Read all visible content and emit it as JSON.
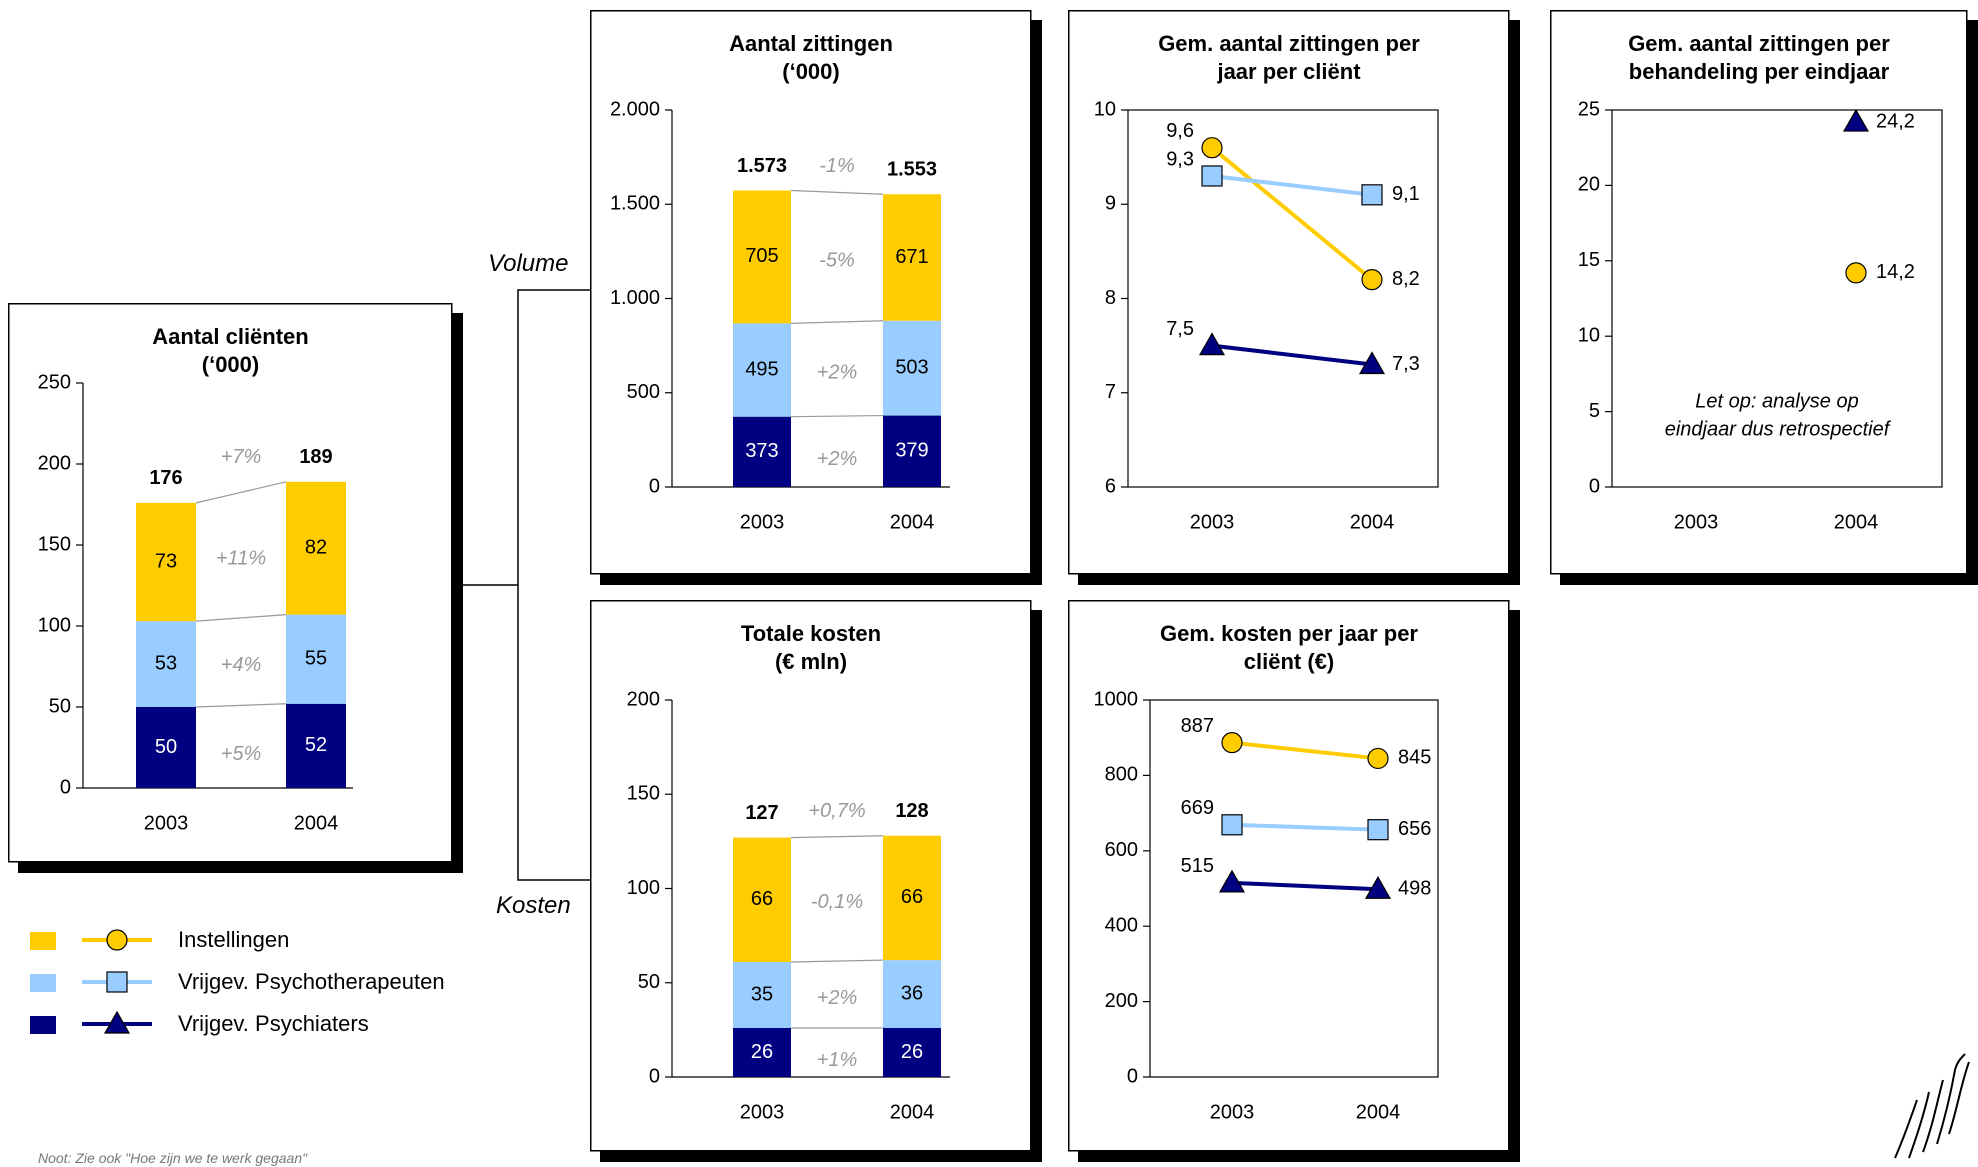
{
  "colors": {
    "instellingen": "#FFCC00",
    "psychotherapeuten": "#99CCFF",
    "psychiaters": "#000080",
    "change_label": "#999999"
  },
  "legend": {
    "items": [
      {
        "label": "Instellingen",
        "color_key": "instellingen",
        "marker": "circle"
      },
      {
        "label": "Vrijgev. Psychotherapeuten",
        "color_key": "psychotherapeuten",
        "marker": "square"
      },
      {
        "label": "Vrijgev. Psychiaters",
        "color_key": "psychiaters",
        "marker": "triangle"
      }
    ]
  },
  "labels": {
    "volume": "Volume",
    "kosten": "Kosten",
    "note": "Noot: Zie ook \"Hoe zijn we te werk gegaan\""
  },
  "chart_data": [
    {
      "id": "clienten",
      "type": "bar",
      "title_lines": [
        "Aantal cliënten",
        "(‘000)"
      ],
      "categories": [
        "2003",
        "2004"
      ],
      "ylim": [
        0,
        250
      ],
      "yticks": [
        0,
        50,
        100,
        150,
        200,
        250
      ],
      "ytick_labels": [
        "0",
        "50",
        "100",
        "150",
        "200",
        "250"
      ],
      "series": [
        {
          "name": "Vrijgev. Psychiaters",
          "color_key": "psychiaters",
          "values": [
            50,
            52
          ],
          "labels": [
            "50",
            "52"
          ]
        },
        {
          "name": "Vrijgev. Psychotherapeuten",
          "color_key": "psychotherapeuten",
          "values": [
            53,
            55
          ],
          "labels": [
            "53",
            "55"
          ]
        },
        {
          "name": "Instellingen",
          "color_key": "instellingen",
          "values": [
            73,
            82
          ],
          "labels": [
            "73",
            "82"
          ]
        }
      ],
      "totals": [
        "176",
        "189"
      ],
      "changes": [
        "+5%",
        "+4%",
        "+11%"
      ],
      "total_change": "+7%"
    },
    {
      "id": "zittingen",
      "type": "bar",
      "title_lines": [
        "Aantal zittingen",
        "(‘000)"
      ],
      "categories": [
        "2003",
        "2004"
      ],
      "ylim": [
        0,
        2000
      ],
      "yticks": [
        0,
        500,
        1000,
        1500,
        2000
      ],
      "ytick_labels": [
        "0",
        "500",
        "1.000",
        "1.500",
        "2.000"
      ],
      "series": [
        {
          "name": "Vrijgev. Psychiaters",
          "color_key": "psychiaters",
          "values": [
            373,
            379
          ],
          "labels": [
            "373",
            "379"
          ]
        },
        {
          "name": "Vrijgev. Psychotherapeuten",
          "color_key": "psychotherapeuten",
          "values": [
            495,
            503
          ],
          "labels": [
            "495",
            "503"
          ]
        },
        {
          "name": "Instellingen",
          "color_key": "instellingen",
          "values": [
            705,
            671
          ],
          "labels": [
            "705",
            "671"
          ]
        }
      ],
      "totals": [
        "1.573",
        "1.553"
      ],
      "changes": [
        "+2%",
        "+2%",
        "-5%"
      ],
      "total_change": "-1%"
    },
    {
      "id": "kosten",
      "type": "bar",
      "title_lines": [
        "Totale kosten",
        "(€ mln)"
      ],
      "categories": [
        "2003",
        "2004"
      ],
      "ylim": [
        0,
        200
      ],
      "yticks": [
        0,
        50,
        100,
        150,
        200
      ],
      "ytick_labels": [
        "0",
        "50",
        "100",
        "150",
        "200"
      ],
      "series": [
        {
          "name": "Vrijgev. Psychiaters",
          "color_key": "psychiaters",
          "values": [
            26,
            26
          ],
          "labels": [
            "26",
            "26"
          ]
        },
        {
          "name": "Vrijgev. Psychotherapeuten",
          "color_key": "psychotherapeuten",
          "values": [
            35,
            36
          ],
          "labels": [
            "35",
            "36"
          ]
        },
        {
          "name": "Instellingen",
          "color_key": "instellingen",
          "values": [
            66,
            66
          ],
          "labels": [
            "66",
            "66"
          ]
        }
      ],
      "totals": [
        "127",
        "128"
      ],
      "changes": [
        "+1%",
        "+2%",
        "-0,1%"
      ],
      "total_change": "+0,7%"
    },
    {
      "id": "zittingen_per_client",
      "type": "line",
      "title_lines": [
        "Gem. aantal zittingen per",
        "jaar per cliënt"
      ],
      "categories": [
        "2003",
        "2004"
      ],
      "ylim": [
        6,
        10
      ],
      "yticks": [
        6,
        7,
        8,
        9,
        10
      ],
      "ytick_labels": [
        "6",
        "7",
        "8",
        "9",
        "10"
      ],
      "series": [
        {
          "name": "Instellingen",
          "color_key": "instellingen",
          "marker": "circle",
          "values": [
            9.6,
            8.2
          ],
          "labels": [
            "9,6",
            "8,2"
          ]
        },
        {
          "name": "Vrijgev. Psychotherapeuten",
          "color_key": "psychotherapeuten",
          "marker": "square",
          "values": [
            9.3,
            9.1
          ],
          "labels": [
            "9,3",
            "9,1"
          ]
        },
        {
          "name": "Vrijgev. Psychiaters",
          "color_key": "psychiaters",
          "marker": "triangle",
          "values": [
            7.5,
            7.3
          ],
          "labels": [
            "7,5",
            "7,3"
          ]
        }
      ]
    },
    {
      "id": "zittingen_per_behandeling",
      "type": "scatter",
      "title_lines": [
        "Gem. aantal zittingen per",
        "behandeling per eindjaar"
      ],
      "categories": [
        "2003",
        "2004"
      ],
      "ylim": [
        0,
        25
      ],
      "yticks": [
        0,
        5,
        10,
        15,
        20,
        25
      ],
      "ytick_labels": [
        "0",
        "5",
        "10",
        "15",
        "20",
        "25"
      ],
      "series": [
        {
          "name": "Vrijgev. Psychiaters",
          "color_key": "psychiaters",
          "marker": "triangle",
          "values": [
            null,
            24.2
          ],
          "labels": [
            "",
            "24,2"
          ]
        },
        {
          "name": "Instellingen",
          "color_key": "instellingen",
          "marker": "circle",
          "values": [
            null,
            14.2
          ],
          "labels": [
            "",
            "14,2"
          ]
        }
      ],
      "annotation_lines": [
        "Let op: analyse op",
        "eindjaar dus retrospectief"
      ]
    },
    {
      "id": "kosten_per_client",
      "type": "line",
      "title_lines": [
        "Gem. kosten per jaar per",
        "cliënt (€)"
      ],
      "categories": [
        "2003",
        "2004"
      ],
      "ylim": [
        0,
        1000
      ],
      "yticks": [
        0,
        200,
        400,
        600,
        800,
        1000
      ],
      "ytick_labels": [
        "0",
        "200",
        "400",
        "600",
        "800",
        "1000"
      ],
      "series": [
        {
          "name": "Instellingen",
          "color_key": "instellingen",
          "marker": "circle",
          "values": [
            887,
            845
          ],
          "labels": [
            "887",
            "845"
          ]
        },
        {
          "name": "Vrijgev. Psychotherapeuten",
          "color_key": "psychotherapeuten",
          "marker": "square",
          "values": [
            669,
            656
          ],
          "labels": [
            "669",
            "656"
          ]
        },
        {
          "name": "Vrijgev. Psychiaters",
          "color_key": "psychiaters",
          "marker": "triangle",
          "values": [
            515,
            498
          ],
          "labels": [
            "515",
            "498"
          ]
        }
      ]
    }
  ]
}
